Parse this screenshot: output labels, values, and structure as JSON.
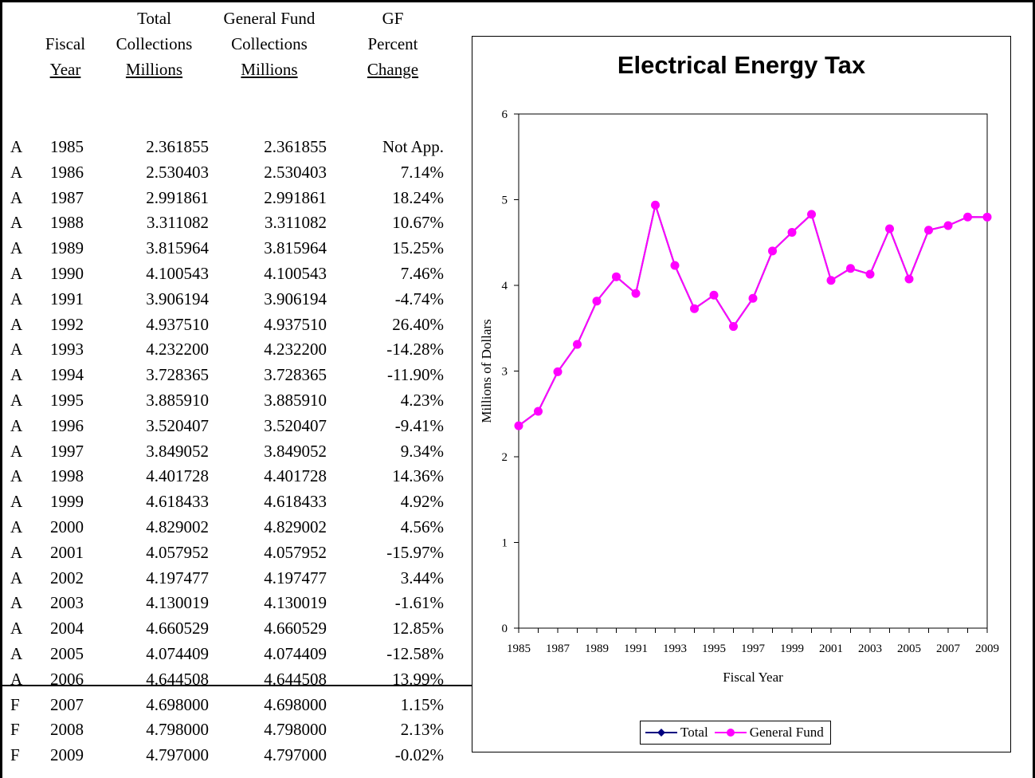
{
  "table": {
    "headers": [
      {
        "lines": [
          "Fiscal",
          "Year"
        ]
      },
      {
        "lines": [
          "Total",
          "Collections",
          "Millions"
        ]
      },
      {
        "lines": [
          "General Fund",
          "Collections",
          "Millions"
        ]
      },
      {
        "lines": [
          "GF",
          "Percent",
          "Change"
        ]
      }
    ],
    "rows": [
      {
        "flag": "A",
        "year": "1985",
        "total": "2.361855",
        "gf": "2.361855",
        "pct": "Not App."
      },
      {
        "flag": "A",
        "year": "1986",
        "total": "2.530403",
        "gf": "2.530403",
        "pct": "7.14%"
      },
      {
        "flag": "A",
        "year": "1987",
        "total": "2.991861",
        "gf": "2.991861",
        "pct": "18.24%"
      },
      {
        "flag": "A",
        "year": "1988",
        "total": "3.311082",
        "gf": "3.311082",
        "pct": "10.67%"
      },
      {
        "flag": "A",
        "year": "1989",
        "total": "3.815964",
        "gf": "3.815964",
        "pct": "15.25%"
      },
      {
        "flag": "A",
        "year": "1990",
        "total": "4.100543",
        "gf": "4.100543",
        "pct": "7.46%"
      },
      {
        "flag": "A",
        "year": "1991",
        "total": "3.906194",
        "gf": "3.906194",
        "pct": "-4.74%"
      },
      {
        "flag": "A",
        "year": "1992",
        "total": "4.937510",
        "gf": "4.937510",
        "pct": "26.40%"
      },
      {
        "flag": "A",
        "year": "1993",
        "total": "4.232200",
        "gf": "4.232200",
        "pct": "-14.28%"
      },
      {
        "flag": "A",
        "year": "1994",
        "total": "3.728365",
        "gf": "3.728365",
        "pct": "-11.90%"
      },
      {
        "flag": "A",
        "year": "1995",
        "total": "3.885910",
        "gf": "3.885910",
        "pct": "4.23%"
      },
      {
        "flag": "A",
        "year": "1996",
        "total": "3.520407",
        "gf": "3.520407",
        "pct": "-9.41%"
      },
      {
        "flag": "A",
        "year": "1997",
        "total": "3.849052",
        "gf": "3.849052",
        "pct": "9.34%"
      },
      {
        "flag": "A",
        "year": "1998",
        "total": "4.401728",
        "gf": "4.401728",
        "pct": "14.36%"
      },
      {
        "flag": "A",
        "year": "1999",
        "total": "4.618433",
        "gf": "4.618433",
        "pct": "4.92%"
      },
      {
        "flag": "A",
        "year": "2000",
        "total": "4.829002",
        "gf": "4.829002",
        "pct": "4.56%"
      },
      {
        "flag": "A",
        "year": "2001",
        "total": "4.057952",
        "gf": "4.057952",
        "pct": "-15.97%"
      },
      {
        "flag": "A",
        "year": "2002",
        "total": "4.197477",
        "gf": "4.197477",
        "pct": "3.44%"
      },
      {
        "flag": "A",
        "year": "2003",
        "total": "4.130019",
        "gf": "4.130019",
        "pct": "-1.61%"
      },
      {
        "flag": "A",
        "year": "2004",
        "total": "4.660529",
        "gf": "4.660529",
        "pct": "12.85%"
      },
      {
        "flag": "A",
        "year": "2005",
        "total": "4.074409",
        "gf": "4.074409",
        "pct": "-12.58%"
      },
      {
        "flag": "A",
        "year": "2006",
        "total": "4.644508",
        "gf": "4.644508",
        "pct": "13.99%"
      },
      {
        "flag": "F",
        "year": "2007",
        "total": "4.698000",
        "gf": "4.698000",
        "pct": "1.15%"
      },
      {
        "flag": "F",
        "year": "2008",
        "total": "4.798000",
        "gf": "4.798000",
        "pct": "2.13%"
      },
      {
        "flag": "F",
        "year": "2009",
        "total": "4.797000",
        "gf": "4.797000",
        "pct": "-0.02%"
      }
    ]
  },
  "chart_data": {
    "type": "line",
    "title": "Electrical Energy Tax",
    "xlabel": "Fiscal Year",
    "ylabel": "Millions of Dollars",
    "ylim": [
      0,
      6
    ],
    "yticks": [
      0,
      1,
      2,
      3,
      4,
      5,
      6
    ],
    "x": [
      1985,
      1986,
      1987,
      1988,
      1989,
      1990,
      1991,
      1992,
      1993,
      1994,
      1995,
      1996,
      1997,
      1998,
      1999,
      2000,
      2001,
      2002,
      2003,
      2004,
      2005,
      2006,
      2007,
      2008,
      2009
    ],
    "xtick_labels": [
      "1985",
      "1987",
      "1989",
      "1991",
      "1993",
      "1995",
      "1997",
      "1999",
      "2001",
      "2003",
      "2005",
      "2007",
      "2009"
    ],
    "grid": false,
    "legend_position": "bottom",
    "series": [
      {
        "name": "Total",
        "color": "#000080",
        "marker": "diamond",
        "values": [
          2.361855,
          2.530403,
          2.991861,
          3.311082,
          3.815964,
          4.100543,
          3.906194,
          4.93751,
          4.2322,
          3.728365,
          3.88591,
          3.520407,
          3.849052,
          4.401728,
          4.618433,
          4.829002,
          4.057952,
          4.197477,
          4.130019,
          4.660529,
          4.074409,
          4.644508,
          4.698,
          4.798,
          4.797
        ]
      },
      {
        "name": "General Fund",
        "color": "#ff00ff",
        "marker": "circle",
        "values": [
          2.361855,
          2.530403,
          2.991861,
          3.311082,
          3.815964,
          4.100543,
          3.906194,
          4.93751,
          4.2322,
          3.728365,
          3.88591,
          3.520407,
          3.849052,
          4.401728,
          4.618433,
          4.829002,
          4.057952,
          4.197477,
          4.130019,
          4.660529,
          4.074409,
          4.644508,
          4.698,
          4.798,
          4.797
        ]
      }
    ]
  }
}
